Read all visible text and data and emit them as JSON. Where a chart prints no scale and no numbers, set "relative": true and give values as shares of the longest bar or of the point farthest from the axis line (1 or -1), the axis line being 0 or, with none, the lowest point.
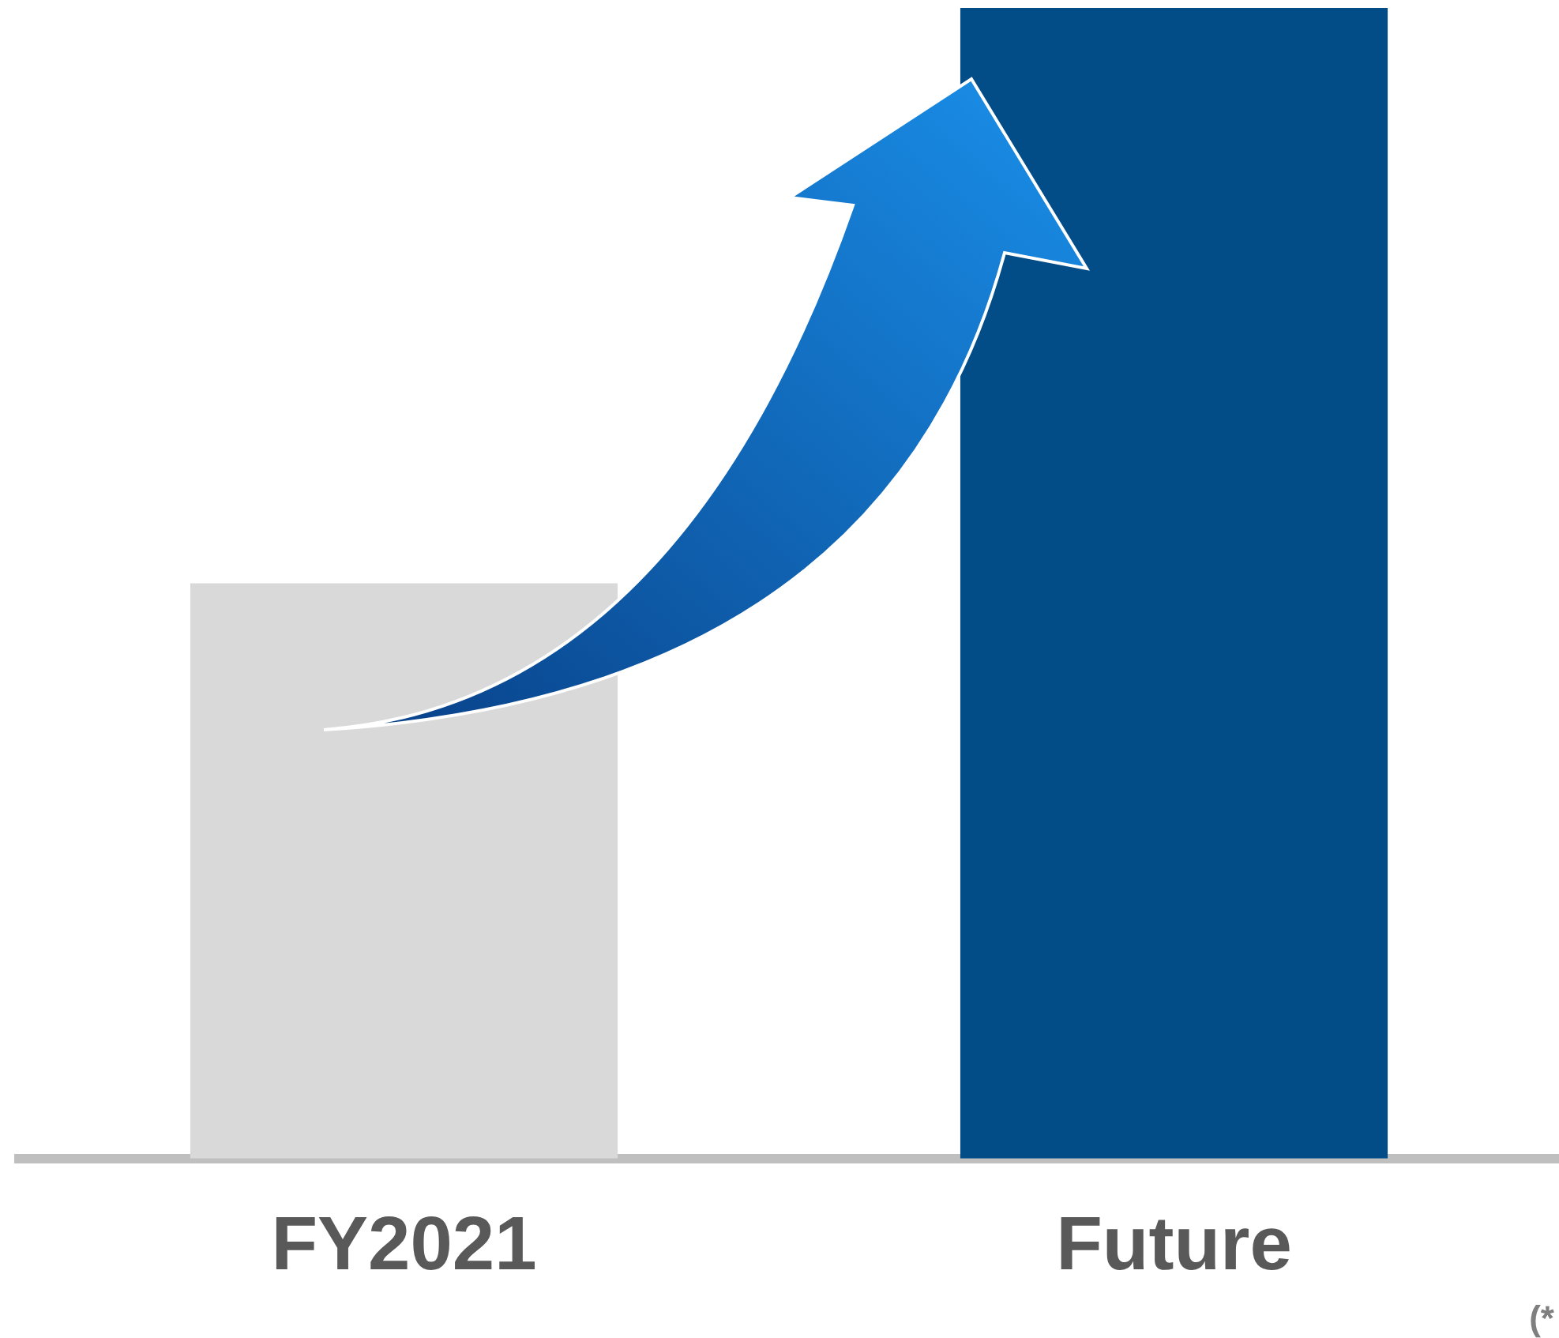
{
  "chart_data": {
    "type": "bar",
    "categories": [
      "FY2021",
      "Future"
    ],
    "colors": [
      "#d9d9d9",
      "#024c87"
    ],
    "values": [
      0.5,
      1
    ],
    "relative": true,
    "grid": false,
    "legend": false,
    "annotations": [
      "(*"
    ]
  }
}
